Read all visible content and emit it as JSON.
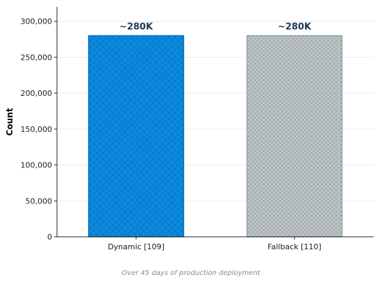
{
  "chart_data": {
    "type": "bar",
    "categories": [
      "Dynamic [109]",
      "Fallback [110]"
    ],
    "values": [
      280000,
      280000
    ],
    "data_labels": [
      "~280K",
      "~280K"
    ],
    "ylabel": "Count",
    "xlabel": "",
    "ylim": [
      0,
      320000
    ],
    "yticks": [
      0,
      50000,
      100000,
      150000,
      200000,
      250000,
      300000
    ],
    "ytick_labels": [
      "0",
      "50,000",
      "100,000",
      "150,000",
      "200,000",
      "250,000",
      "300,000"
    ],
    "grid": "horizontal, faint",
    "colors": [
      "#0a8be0",
      "#bcc2c4"
    ],
    "edge_colors": [
      "#0a6fb8",
      "#8ea3a8"
    ],
    "hatches": [
      "crosshatch",
      "dots"
    ]
  },
  "caption": "Over 45 days of production deployment"
}
